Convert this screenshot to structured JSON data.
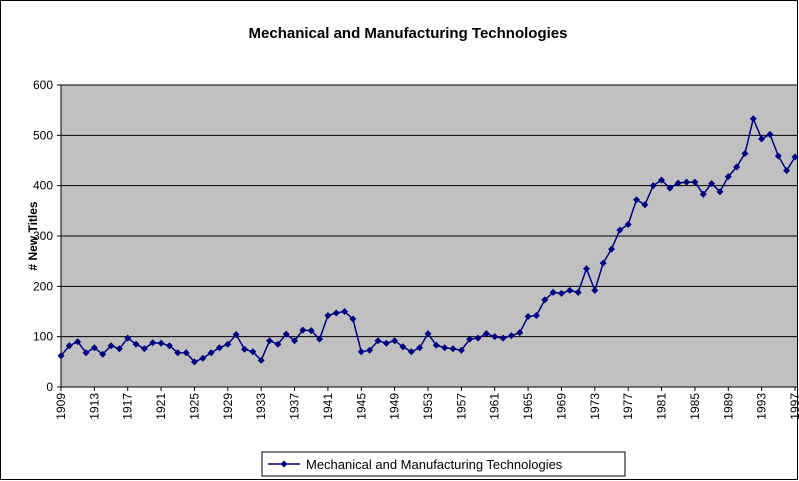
{
  "chart_data": {
    "type": "line",
    "title": "Mechanical and Manufacturing Technologies",
    "y_label": "# New Titles",
    "categories": [
      "1909",
      null,
      null,
      null,
      "1913",
      null,
      null,
      null,
      "1917",
      null,
      null,
      null,
      "1921",
      null,
      null,
      null,
      "1925",
      null,
      null,
      null,
      "1929",
      null,
      null,
      null,
      "1933",
      null,
      null,
      null,
      "1937",
      null,
      null,
      null,
      "1941",
      null,
      null,
      null,
      "1945",
      null,
      null,
      null,
      "1949",
      null,
      null,
      null,
      "1953",
      null,
      null,
      null,
      "1957",
      null,
      null,
      null,
      "1961",
      null,
      null,
      null,
      "1965",
      null,
      null,
      null,
      "1969",
      null,
      null,
      null,
      "1973",
      null,
      null,
      null,
      "1977",
      null,
      null,
      null,
      "1981",
      null,
      null,
      null,
      "1985",
      null,
      null,
      null,
      "1989",
      null,
      null,
      null,
      "1993",
      null,
      null,
      null,
      "1997"
    ],
    "series": [
      {
        "name": "Mechanical and Manufacturing Technologies",
        "color": "#000080",
        "values": [
          62,
          82,
          90,
          68,
          78,
          65,
          82,
          76,
          97,
          85,
          76,
          88,
          87,
          82,
          68,
          68,
          50,
          57,
          68,
          78,
          85,
          104,
          75,
          70,
          53,
          92,
          85,
          105,
          92,
          113,
          112,
          95,
          142,
          147,
          150,
          135,
          70,
          73,
          92,
          87,
          92,
          80,
          70,
          78,
          106,
          83,
          78,
          76,
          73,
          95,
          97,
          106,
          100,
          97,
          102,
          108,
          140,
          142,
          173,
          188,
          186,
          192,
          188,
          235,
          192,
          246,
          274,
          312,
          323,
          372,
          362,
          400,
          411,
          395,
          405,
          407,
          407,
          383,
          404,
          388,
          418,
          437,
          464,
          533,
          493,
          502,
          459,
          430,
          457
        ]
      }
    ],
    "ylim": [
      0,
      600
    ],
    "yticks": [
      0,
      100,
      200,
      300,
      400,
      500,
      600
    ],
    "grid": true,
    "plot_background": "#c0c0c0",
    "legend": "bottom"
  }
}
